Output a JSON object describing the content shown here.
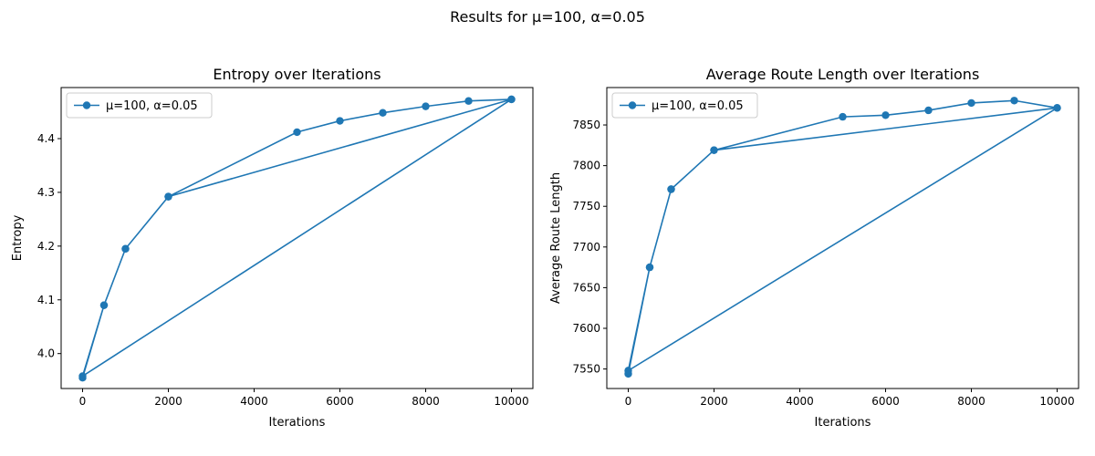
{
  "figure": {
    "suptitle": "Results for μ=100, α=0.05"
  },
  "chart_data": [
    {
      "type": "line",
      "title": "Entropy over Iterations",
      "xlabel": "Iterations",
      "ylabel": "Entropy",
      "xlim": [
        -500,
        10500
      ],
      "ylim": [
        3.935,
        4.495
      ],
      "xticks": [
        0,
        2000,
        4000,
        6000,
        8000,
        10000
      ],
      "yticks": [
        4.0,
        4.1,
        4.2,
        4.3,
        4.4
      ],
      "ytick_labels": [
        "4.0",
        "4.1",
        "4.2",
        "4.3",
        "4.4"
      ],
      "legend": "upper-left",
      "grid": false,
      "series": [
        {
          "name": "μ=100, α=0.05",
          "color": "#1f77b4",
          "marker": "circle",
          "x": [
            0,
            500,
            1000,
            2000,
            10000,
            0,
            500,
            1000,
            2000,
            5000,
            6000,
            7000,
            8000,
            9000,
            10000
          ],
          "y": [
            3.955,
            4.09,
            4.195,
            4.292,
            4.473,
            3.958,
            4.09,
            4.195,
            4.292,
            4.412,
            4.433,
            4.448,
            4.46,
            4.47,
            4.473
          ]
        }
      ]
    },
    {
      "type": "line",
      "title": "Average Route Length over Iterations",
      "xlabel": "Iterations",
      "ylabel": "Average Route Length",
      "xlim": [
        -500,
        10500
      ],
      "ylim": [
        7526,
        7896
      ],
      "xticks": [
        0,
        2000,
        4000,
        6000,
        8000,
        10000
      ],
      "yticks": [
        7550,
        7600,
        7650,
        7700,
        7750,
        7800,
        7850
      ],
      "ytick_labels": [
        "7550",
        "7600",
        "7650",
        "7700",
        "7750",
        "7800",
        "7850"
      ],
      "legend": "upper-left",
      "grid": false,
      "series": [
        {
          "name": "μ=100, α=0.05",
          "color": "#1f77b4",
          "marker": "circle",
          "x": [
            0,
            500,
            1000,
            2000,
            10000,
            0,
            500,
            1000,
            2000,
            5000,
            6000,
            7000,
            8000,
            9000,
            10000
          ],
          "y": [
            7544,
            7675,
            7771,
            7819,
            7871,
            7548,
            7675,
            7771,
            7819,
            7860,
            7862,
            7868,
            7877,
            7880,
            7871
          ]
        }
      ]
    }
  ]
}
